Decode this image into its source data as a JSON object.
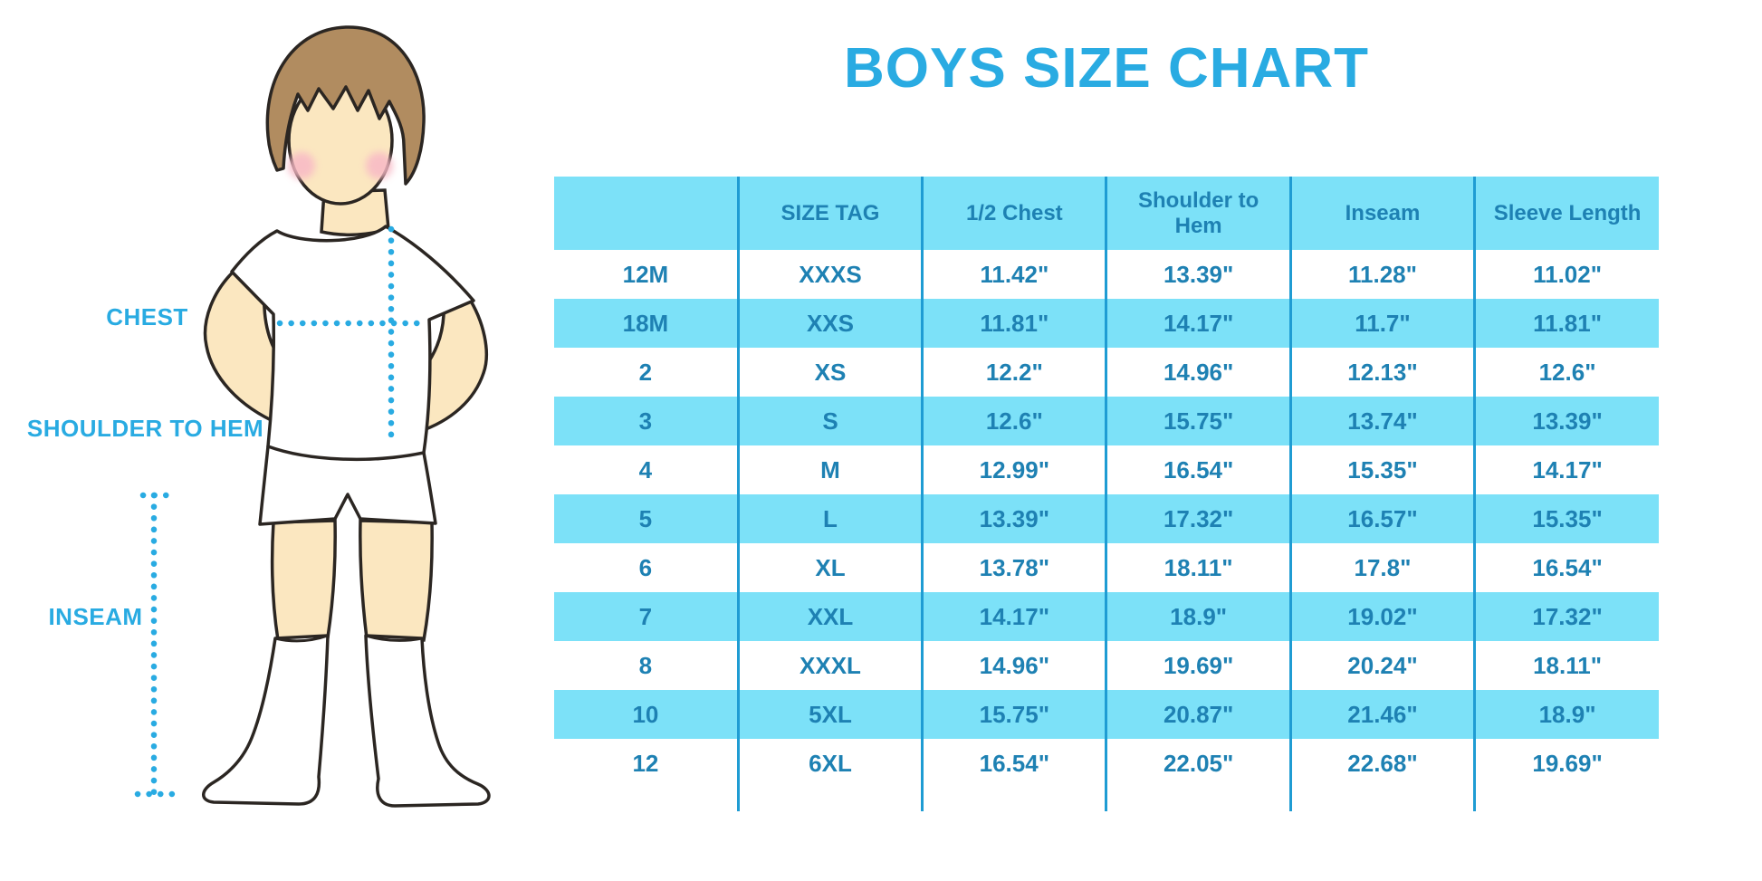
{
  "title": "BOYS SIZE CHART",
  "figure_labels": {
    "chest": "CHEST",
    "shoulder_to_hem": "SHOULDER TO HEM",
    "inseam": "INSEAM"
  },
  "colors": {
    "accent": "#29ABE2",
    "table_text": "#1E81B3",
    "row_highlight": "#7CE1F8",
    "divider": "#1F9CD3",
    "skin": "#FBE7C0",
    "hair": "#B18C60",
    "blush": "#F8B9C6",
    "outline": "#2B2622"
  },
  "chart_data": {
    "type": "table",
    "title": "BOYS SIZE CHART",
    "columns": [
      "",
      "SIZE TAG",
      "1/2 Chest",
      "Shoulder to Hem",
      "Inseam",
      "Sleeve Length"
    ],
    "rows": [
      [
        "12M",
        "XXXS",
        "11.42\"",
        "13.39\"",
        "11.28\"",
        "11.02\""
      ],
      [
        "18M",
        "XXS",
        "11.81\"",
        "14.17\"",
        "11.7\"",
        "11.81\""
      ],
      [
        "2",
        "XS",
        "12.2\"",
        "14.96\"",
        "12.13\"",
        "12.6\""
      ],
      [
        "3",
        "S",
        "12.6\"",
        "15.75\"",
        "13.74\"",
        "13.39\""
      ],
      [
        "4",
        "M",
        "12.99\"",
        "16.54\"",
        "15.35\"",
        "14.17\""
      ],
      [
        "5",
        "L",
        "13.39\"",
        "17.32\"",
        "16.57\"",
        "15.35\""
      ],
      [
        "6",
        "XL",
        "13.78\"",
        "18.11\"",
        "17.8\"",
        "16.54\""
      ],
      [
        "7",
        "XXL",
        "14.17\"",
        "18.9\"",
        "19.02\"",
        "17.32\""
      ],
      [
        "8",
        "XXXL",
        "14.96\"",
        "19.69\"",
        "20.24\"",
        "18.11\""
      ],
      [
        "10",
        "5XL",
        "15.75\"",
        "20.87\"",
        "21.46\"",
        "18.9\""
      ],
      [
        "12",
        "6XL",
        "16.54\"",
        "22.05\"",
        "22.68\"",
        "19.69\""
      ]
    ],
    "row_fill_pattern": "alternating white / light-cyan starting white",
    "units": "inches"
  }
}
